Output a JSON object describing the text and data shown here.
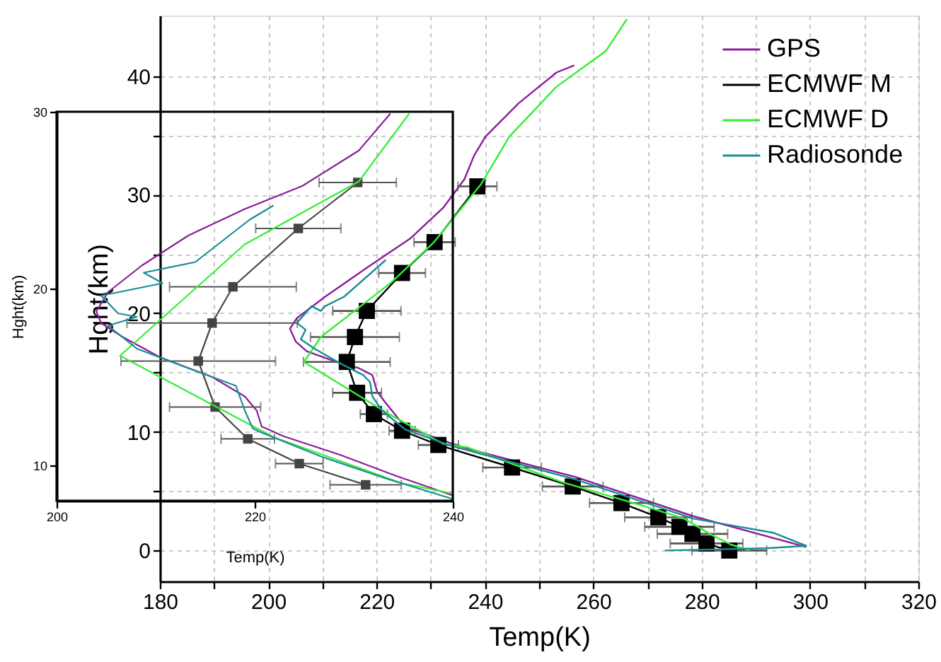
{
  "chart_data": [
    {
      "type": "line",
      "xlabel": "Temp(K)",
      "ylabel": "Hght(km)",
      "xlim": [
        180,
        320
      ],
      "ylim": [
        -2.6,
        45.1
      ],
      "xticks": [
        180,
        {
          "value": 190,
          "label": null
        },
        200,
        {
          "value": 210,
          "label": null
        },
        220,
        {
          "value": 230,
          "label": null
        },
        240,
        {
          "value": 250,
          "label": null
        },
        260,
        {
          "value": 270,
          "label": null
        },
        280,
        {
          "value": 290,
          "label": null
        },
        300,
        {
          "value": 310,
          "label": null
        },
        320
      ],
      "yticks": [
        0,
        {
          "value": 5,
          "label": null
        },
        10,
        {
          "value": 15,
          "label": null
        },
        20,
        {
          "value": 25,
          "label": null
        },
        30,
        {
          "value": 35,
          "label": null
        },
        40
      ],
      "grid": true,
      "legend": "top right",
      "series": [
        {
          "name": "GPS",
          "color": "#8b1c9c",
          "marker": "none",
          "x": [
            256.5,
            253.2,
            246.2,
            240.1,
            238.0,
            236.2,
            232.3,
            226.2,
            218.4,
            210.5,
            205.3,
            204.0,
            205.1,
            207.1,
            213.2,
            216.6,
            219.2,
            220.1,
            221.4,
            225.3,
            234.0,
            236.7,
            256.7,
            278.4,
            299.3
          ],
          "values": [
            40.9,
            40.3,
            37.7,
            34.9,
            33.3,
            31.3,
            28.9,
            26.3,
            23.9,
            21.4,
            19.6,
            18.7,
            17.6,
            16.8,
            15.8,
            15.4,
            14.8,
            13.4,
            12.6,
            10.4,
            9.0,
            8.6,
            6.2,
            2.9,
            0.3
          ]
        },
        {
          "name": "ECMWF M",
          "color": "#000000",
          "marker": "square",
          "x": [
            238.6,
            230.7,
            224.7,
            218.2,
            216.0,
            214.5,
            216.4,
            219.5,
            224.7,
            231.4,
            245.0,
            256.2,
            265.2,
            272.0,
            275.9,
            278.3,
            280.9,
            285.1
          ],
          "values": [
            30.7,
            26.0,
            23.4,
            20.2,
            18.0,
            15.9,
            13.3,
            11.5,
            10.1,
            8.9,
            7.0,
            5.4,
            4.0,
            2.8,
            2.0,
            1.4,
            0.6,
            0.0
          ],
          "xerrors": [
            3.6,
            3.8,
            4.3,
            6.3,
            8.2,
            8.0,
            4.5,
            2.5,
            2.4,
            3.7,
            5.4,
            5.6,
            5.9,
            6.2,
            6.4,
            6.5,
            6.7,
            6.9
          ]
        },
        {
          "name": "ECMWF D",
          "color": "#33ee33",
          "marker": "none",
          "x": [
            266.2,
            262.3,
            253.2,
            244.5,
            239.3,
            230.6,
            222.7,
            209.7,
            206.6,
            221.9,
            232.3,
            236.7,
            254.0,
            269.7,
            276.7,
            281.9,
            285.4,
            288.9
          ],
          "values": [
            44.8,
            42.1,
            39.1,
            34.9,
            30.9,
            26.0,
            22.6,
            18.0,
            15.9,
            11.6,
            9.0,
            8.7,
            5.8,
            3.7,
            2.7,
            1.3,
            0.5,
            0.0
          ]
        },
        {
          "name": "Radiosonde",
          "color": "#1a8c96",
          "marker": "none",
          "x": [
            221.7,
            214.0,
            210.5,
            209.7,
            208.0,
            205.3,
            206.9,
            206.0,
            208.6,
            213.2,
            217.5,
            218.8,
            219.2,
            221.0,
            225.3,
            234.0,
            256.7,
            278.4,
            293.2,
            299.3,
            292.3,
            273.2
          ],
          "values": [
            24.5,
            21.4,
            20.6,
            20.2,
            20.6,
            19.2,
            18.6,
            17.8,
            17.0,
            15.8,
            14.8,
            14.2,
            13.0,
            11.8,
            10.2,
            8.8,
            6.0,
            2.7,
            1.5,
            0.4,
            0.2,
            0.0
          ]
        }
      ]
    },
    {
      "type": "line",
      "xlabel": "Temp(K)",
      "ylabel": "Hght(km)",
      "xlim": [
        200,
        240
      ],
      "ylim": [
        8,
        30
      ],
      "xticks": [
        200,
        220,
        240
      ],
      "yticks": [
        10,
        20,
        30
      ],
      "grid": false,
      "legend": false,
      "series": [
        {
          "color": "#8b1c9c",
          "marker": "none",
          "x": [
            233.7,
            230.5,
            224.8,
            219.0,
            213.3,
            208.6,
            205.2,
            204.0,
            204.5,
            206.7,
            210.5,
            215.7,
            219.0,
            220.2,
            220.7,
            222.9,
            228.6,
            234.3,
            240.0
          ],
          "values": [
            29.9,
            27.8,
            25.8,
            24.5,
            23.0,
            21.3,
            19.8,
            18.7,
            18.05,
            17.25,
            16.1,
            15.0,
            13.9,
            13.1,
            12.2,
            11.65,
            10.6,
            9.4,
            8.3
          ]
        },
        {
          "color": "#444444",
          "marker": "square",
          "x": [
            230.4,
            224.4,
            217.8,
            215.7,
            214.3,
            216.0,
            219.3,
            224.5,
            231.2
          ],
          "values": [
            26.0,
            23.4,
            20.1,
            18.05,
            15.9,
            13.3,
            11.5,
            10.1,
            8.9
          ],
          "xerrors": [
            3.9,
            4.3,
            6.4,
            8.6,
            7.8,
            4.6,
            2.7,
            2.4,
            3.6
          ]
        },
        {
          "color": "#33ee33",
          "marker": "none",
          "x": [
            235.6,
            230.5,
            219.0,
            206.4,
            221.9,
            234.8,
            240.0
          ],
          "values": [
            29.9,
            26.05,
            22.5,
            16.2,
            11.6,
            9.0,
            8.4
          ]
        },
        {
          "color": "#1a8c96",
          "marker": "none",
          "x": [
            221.9,
            219.5,
            214.0,
            208.8,
            210.7,
            204.5,
            206.2,
            208.1,
            205.2,
            208.1,
            213.3,
            218.1,
            219.0,
            219.8,
            220.5,
            226.7,
            233.3,
            240.0
          ],
          "values": [
            24.7,
            23.9,
            21.5,
            20.9,
            20.3,
            19.6,
            18.6,
            18.4,
            17.9,
            16.6,
            15.5,
            14.5,
            13.1,
            12.1,
            11.9,
            10.5,
            9.25,
            8.1
          ]
        }
      ]
    }
  ]
}
